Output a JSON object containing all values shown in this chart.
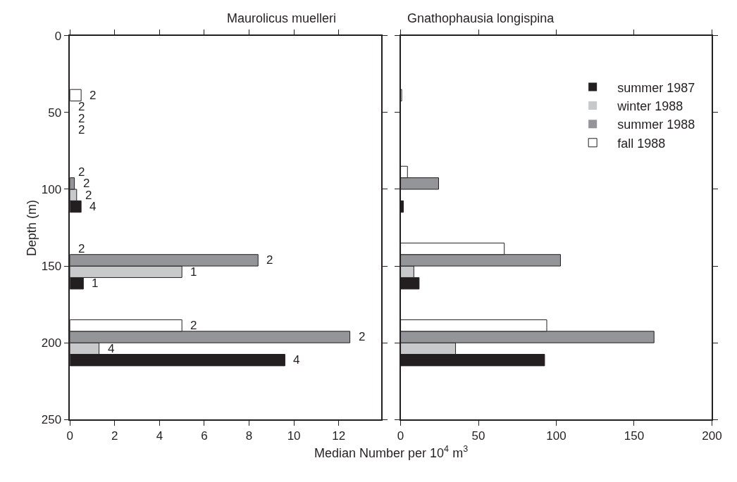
{
  "chart_data": [
    {
      "type": "bar",
      "orientation": "horizontal",
      "title": "Maurolicus muelleri",
      "xlabel": "Median Number per 10$^{4}$ m$^{3}$",
      "ylabel": "Depth (m)",
      "series": [
        {
          "name": "summer 1987",
          "color": "#231f20",
          "x": [
            61.25,
            111.25,
            161.25,
            211.25
          ],
          "values": [
            0,
            0.5,
            0.6,
            9.6
          ]
        },
        {
          "name": "winter 1988",
          "color": "#c8c9cb",
          "x": [
            53.75,
            103.75,
            153.75,
            203.75
          ],
          "values": [
            0,
            0.3,
            5.0,
            1.3
          ]
        },
        {
          "name": "summer 1988",
          "color": "#939598",
          "x": [
            46.25,
            96.25,
            146.25,
            196.25
          ],
          "values": [
            0,
            0.2,
            8.4,
            12.5
          ]
        },
        {
          "name": "fall 1988",
          "color": "#ffffff",
          "x": [
            38.75,
            88.75,
            138.75,
            188.75
          ],
          "values": [
            0.5,
            0,
            0,
            5.0
          ]
        }
      ],
      "xlim": [
        0,
        13.9
      ],
      "xticks": [
        0,
        2,
        4,
        6,
        8,
        10,
        12
      ],
      "ylim": [
        250,
        0
      ],
      "yticks": [
        0,
        50,
        100,
        150,
        200,
        250
      ],
      "legend": "top right",
      "annotations": [
        {
          "text": "2",
          "x": 0.5,
          "y": 38.75
        },
        {
          "text": "2",
          "x": 0,
          "y": 46.25
        },
        {
          "text": "2",
          "x": 0,
          "y": 53.75
        },
        {
          "text": "2",
          "x": 0,
          "y": 61.25
        },
        {
          "text": "2",
          "x": 0,
          "y": 88.75
        },
        {
          "text": "2",
          "x": 0.2,
          "y": 96.25
        },
        {
          "text": "2",
          "x": 0.3,
          "y": 103.75
        },
        {
          "text": "4",
          "x": 0.5,
          "y": 111.25
        },
        {
          "text": "2",
          "x": 0,
          "y": 138.75
        },
        {
          "text": "2",
          "x": 8.4,
          "y": 146.25
        },
        {
          "text": "1",
          "x": 5.0,
          "y": 153.75
        },
        {
          "text": "1",
          "x": 0.6,
          "y": 161.25
        },
        {
          "text": "2",
          "x": 5.0,
          "y": 188.75
        },
        {
          "text": "2",
          "x": 12.5,
          "y": 196.25
        },
        {
          "text": "4",
          "x": 1.3,
          "y": 203.75
        },
        {
          "text": "4",
          "x": 9.6,
          "y": 211.25
        }
      ]
    },
    {
      "type": "bar",
      "orientation": "horizontal",
      "title": "Gnathophausia longispina",
      "series": [
        {
          "name": "summer 1987",
          "color": "#231f20",
          "x": [
            111.25,
            161.25,
            211.25
          ],
          "values": [
            1.8,
            11.9,
            92.5
          ]
        },
        {
          "name": "winter 1988",
          "color": "#c8c9cb",
          "x": [
            153.75,
            203.75
          ],
          "values": [
            8.5,
            35.3
          ]
        },
        {
          "name": "summer 1988",
          "color": "#939598",
          "x": [
            96.25,
            146.25,
            196.25
          ],
          "values": [
            24.4,
            102.7,
            162.8
          ]
        },
        {
          "name": "fall 1988",
          "color": "#ffffff",
          "x": [
            38.75,
            88.75,
            138.75,
            188.75
          ],
          "values": [
            0.7,
            4.4,
            66.6,
            93.9
          ]
        }
      ],
      "xlim": [
        0,
        200
      ],
      "xticks": [
        0,
        50,
        100,
        150,
        200
      ],
      "ylim": [
        250,
        0
      ],
      "yticks": [
        0,
        50,
        100,
        150,
        200,
        250
      ],
      "tick_labels": "x"
    }
  ]
}
